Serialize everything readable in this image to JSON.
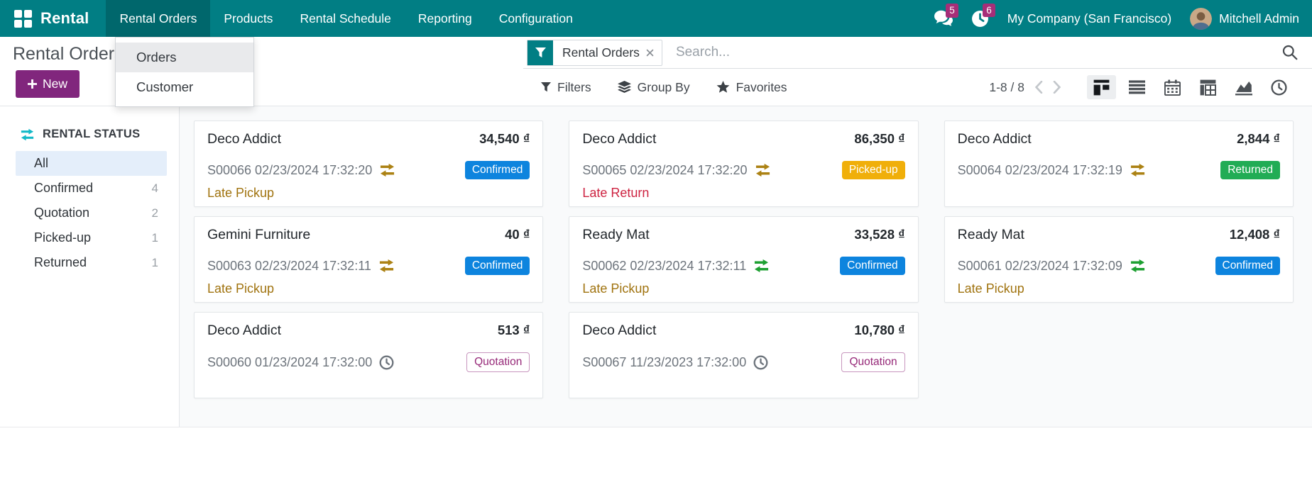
{
  "colors": {
    "topbar_teal": "#017e84",
    "active_menu_overlay": "#06686f",
    "new_button_purple": "#81267d",
    "notification_badge_magenta": "#a62e78",
    "badge_confirmed_blue": "#0d84de",
    "badge_picked_up_yellow": "#f0af0a",
    "badge_returned_green": "#21ac55",
    "badge_quotation_purple": "#962878",
    "late_pickup_gold": "#a0730f",
    "late_return_red": "#cd2341",
    "exchange_icon_gold": "#ac8214",
    "exchange_icon_green": "#1ea032",
    "sidebar_selected_blue": "#e4eefa",
    "sidebar_header_icon_cyan": "#14b9c8"
  },
  "header": {
    "app_name": "Rental",
    "menus": [
      {
        "label": "Rental Orders",
        "active": true
      },
      {
        "label": "Products",
        "active": false
      },
      {
        "label": "Rental Schedule",
        "active": false
      },
      {
        "label": "Reporting",
        "active": false
      },
      {
        "label": "Configuration",
        "active": false
      }
    ],
    "messages_count": "5",
    "activities_count": "6",
    "company": "My Company (San Francisco)",
    "user": "Mitchell Admin"
  },
  "menu_dropdown": {
    "items": [
      {
        "label": "Orders",
        "highlighted": true
      },
      {
        "label": "Customer",
        "highlighted": false
      }
    ]
  },
  "control_panel": {
    "title": "Rental Orders",
    "new_button_label": "New",
    "search": {
      "facet_label": "Rental Orders",
      "placeholder": "Search..."
    },
    "filters_label": "Filters",
    "group_by_label": "Group By",
    "favorites_label": "Favorites",
    "pager": "1-8 / 8",
    "view_switcher": [
      {
        "name": "kanban",
        "active": true
      },
      {
        "name": "list",
        "active": false
      },
      {
        "name": "calendar",
        "active": false
      },
      {
        "name": "pivot",
        "active": false
      },
      {
        "name": "graph",
        "active": false
      },
      {
        "name": "activity",
        "active": false
      }
    ]
  },
  "sidebar": {
    "title": "RENTAL STATUS",
    "items": [
      {
        "label": "All",
        "count": "",
        "selected": true
      },
      {
        "label": "Confirmed",
        "count": "4",
        "selected": false
      },
      {
        "label": "Quotation",
        "count": "2",
        "selected": false
      },
      {
        "label": "Picked-up",
        "count": "1",
        "selected": false
      },
      {
        "label": "Returned",
        "count": "1",
        "selected": false
      }
    ]
  },
  "kanban": {
    "currency": "₫",
    "cards": [
      {
        "customer": "Deco Addict",
        "amount": "34,540",
        "reference": "S00066 02/23/2024 17:32:20",
        "ref_icon": "exchange-gold",
        "status": "Confirmed",
        "status_type": "confirmed",
        "late_label": "Late Pickup",
        "late_type": "late-pickup"
      },
      {
        "customer": "Deco Addict",
        "amount": "86,350",
        "reference": "S00065 02/23/2024 17:32:20",
        "ref_icon": "exchange-gold",
        "status": "Picked-up",
        "status_type": "picked-up",
        "late_label": "Late Return",
        "late_type": "late-return"
      },
      {
        "customer": "Deco Addict",
        "amount": "2,844",
        "reference": "S00064 02/23/2024 17:32:19",
        "ref_icon": "exchange-gold",
        "status": "Returned",
        "status_type": "returned",
        "late_label": "",
        "late_type": ""
      },
      {
        "customer": "Gemini Furniture",
        "amount": "40",
        "reference": "S00063 02/23/2024 17:32:11",
        "ref_icon": "exchange-gold",
        "status": "Confirmed",
        "status_type": "confirmed",
        "late_label": "Late Pickup",
        "late_type": "late-pickup"
      },
      {
        "customer": "Ready Mat",
        "amount": "33,528",
        "reference": "S00062 02/23/2024 17:32:11",
        "ref_icon": "exchange-green",
        "status": "Confirmed",
        "status_type": "confirmed",
        "late_label": "Late Pickup",
        "late_type": "late-pickup"
      },
      {
        "customer": "Ready Mat",
        "amount": "12,408",
        "reference": "S00061 02/23/2024 17:32:09",
        "ref_icon": "exchange-green",
        "status": "Confirmed",
        "status_type": "confirmed",
        "late_label": "Late Pickup",
        "late_type": "late-pickup"
      },
      {
        "customer": "Deco Addict",
        "amount": "513",
        "reference": "S00060 01/23/2024 17:32:00",
        "ref_icon": "clock",
        "status": "Quotation",
        "status_type": "quotation",
        "late_label": "",
        "late_type": ""
      },
      {
        "customer": "Deco Addict",
        "amount": "10,780",
        "reference": "S00067 11/23/2023 17:32:00",
        "ref_icon": "clock",
        "status": "Quotation",
        "status_type": "quotation",
        "late_label": "",
        "late_type": ""
      }
    ]
  }
}
